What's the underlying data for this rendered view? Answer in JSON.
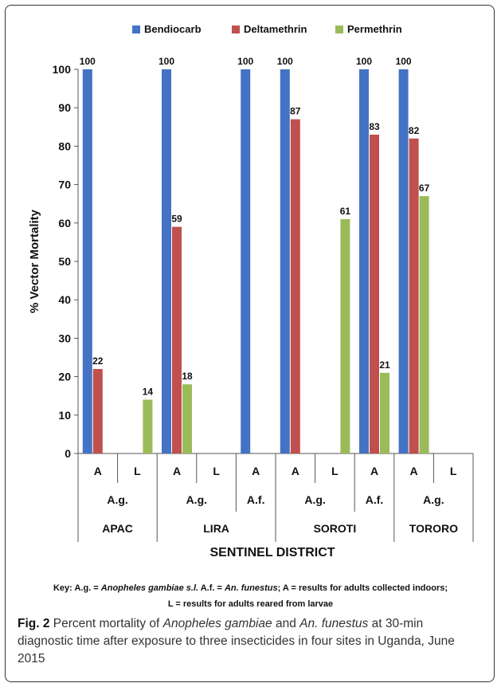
{
  "chart_data": {
    "type": "bar",
    "ylabel": "% Vector Mortality",
    "xlabel": "SENTINEL DISTRICT",
    "ylim": [
      0,
      100
    ],
    "yticks": [
      0,
      10,
      20,
      30,
      40,
      50,
      60,
      70,
      80,
      90,
      100
    ],
    "grid": false,
    "legend_position": "top",
    "categories": [
      {
        "stage": "A",
        "species": "A.g.",
        "district": "APAC"
      },
      {
        "stage": "L",
        "species": "A.g.",
        "district": "APAC"
      },
      {
        "stage": "A",
        "species": "A.g.",
        "district": "LIRA"
      },
      {
        "stage": "L",
        "species": "A.g.",
        "district": "LIRA"
      },
      {
        "stage": "A",
        "species": "A.f.",
        "district": "LIRA"
      },
      {
        "stage": "A",
        "species": "A.g.",
        "district": "SOROTI"
      },
      {
        "stage": "L",
        "species": "A.g.",
        "district": "SOROTI"
      },
      {
        "stage": "A",
        "species": "A.f.",
        "district": "SOROTI"
      },
      {
        "stage": "A",
        "species": "A.g.",
        "district": "TORORO"
      },
      {
        "stage": "L",
        "species": "A.g.",
        "district": "TORORO"
      }
    ],
    "species_groups": [
      {
        "label": "A.g.",
        "span": 2
      },
      {
        "label": "A.g.",
        "span": 2
      },
      {
        "label": "A.f.",
        "span": 1
      },
      {
        "label": "A.g.",
        "span": 2
      },
      {
        "label": "A.f.",
        "span": 1
      },
      {
        "label": "A.g.",
        "span": 2
      }
    ],
    "district_groups": [
      {
        "label": "APAC",
        "span": 2
      },
      {
        "label": "LIRA",
        "span": 3
      },
      {
        "label": "SOROTI",
        "span": 3
      },
      {
        "label": "TORORO",
        "span": 2
      }
    ],
    "series": [
      {
        "name": "Bendiocarb",
        "color": "#4472c4",
        "values": [
          100,
          null,
          100,
          null,
          100,
          100,
          null,
          100,
          100,
          null
        ]
      },
      {
        "name": "Deltamethrin",
        "color": "#c0504d",
        "values": [
          22,
          null,
          59,
          null,
          null,
          87,
          null,
          83,
          82,
          null
        ]
      },
      {
        "name": "Permethrin",
        "color": "#9bbb59",
        "values": [
          null,
          14,
          18,
          null,
          null,
          null,
          61,
          21,
          67,
          null
        ]
      }
    ]
  },
  "key": {
    "line1_a": "Key: A.g. = ",
    "line1_b": "Anopheles gambiae s.l.",
    "line1_c": " A.f. = ",
    "line1_d": "An. funestus",
    "line1_e": "; A = results for adults collected indoors;",
    "line2": "L = results for adults reared from larvae"
  },
  "caption": {
    "fig_label": "Fig. 2",
    "t1": " Percent mortality of ",
    "t2": "Anopheles gambiae",
    "t3": " and ",
    "t4": "An. funestus",
    "t5": " at 30-min diagnostic time after exposure to three insecticides in four sites in Uganda, June 2015"
  }
}
